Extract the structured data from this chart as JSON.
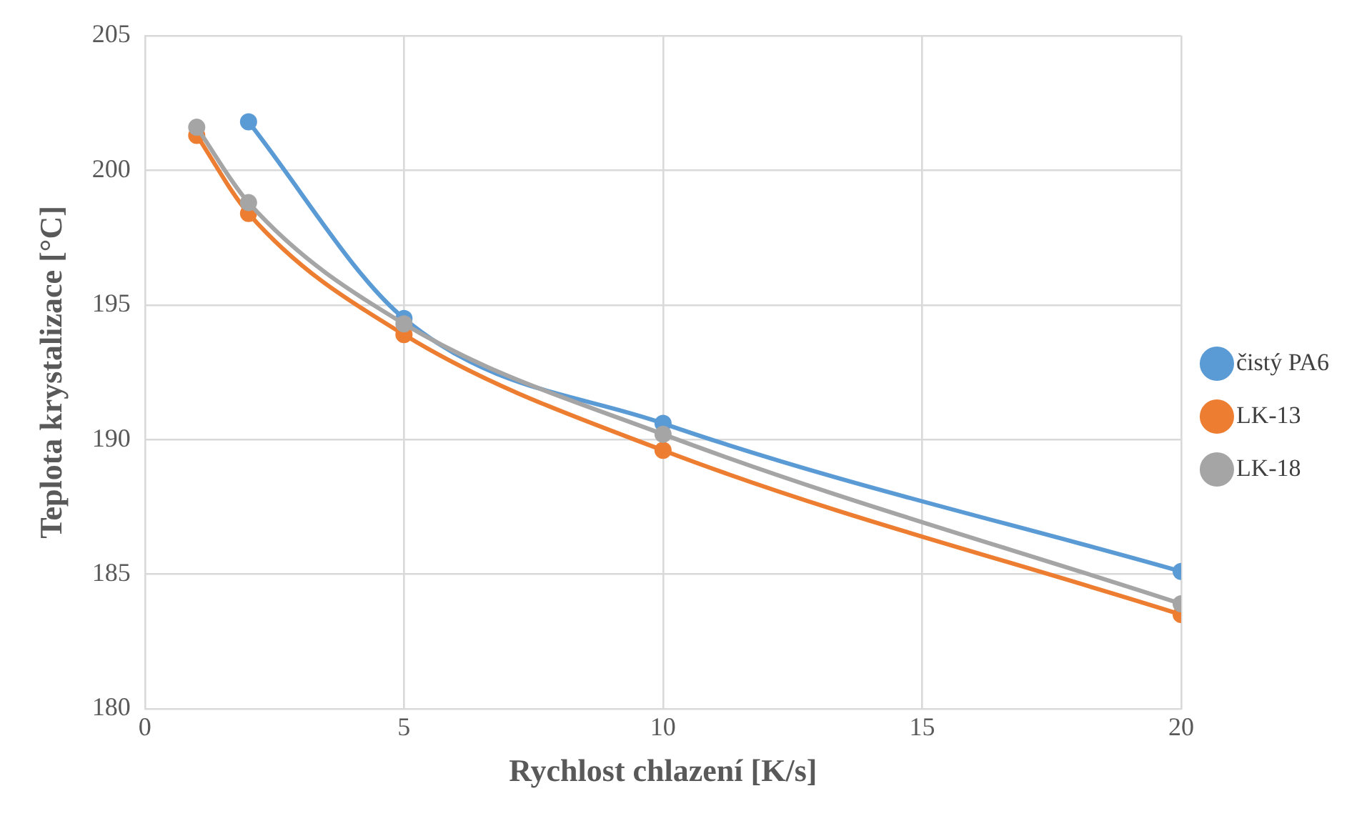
{
  "chart_data": {
    "type": "line",
    "xlabel": "Rychlost chlazení [K/s]",
    "ylabel": "Teplota krystalizace [°C]",
    "xlim": [
      0,
      20
    ],
    "xticks": [
      0,
      5,
      10,
      15,
      20
    ],
    "ylim": [
      180,
      205
    ],
    "yticks": [
      180,
      185,
      190,
      195,
      200,
      205
    ],
    "grid": true,
    "legend": "right",
    "marker": "circle",
    "line_style": "solid",
    "series": [
      {
        "name": "čistý PA6",
        "color": "#5b9bd5",
        "x": [
          2,
          5,
          10,
          20
        ],
        "values": [
          201.8,
          194.5,
          190.6,
          185.1
        ]
      },
      {
        "name": "LK-13",
        "color": "#ed7d31",
        "x": [
          1,
          2,
          5,
          10,
          20
        ],
        "values": [
          201.3,
          198.4,
          193.9,
          189.6,
          183.5
        ]
      },
      {
        "name": "LK-18",
        "color": "#a5a5a5",
        "x": [
          1,
          2,
          5,
          10,
          20
        ],
        "values": [
          201.6,
          198.8,
          194.3,
          190.2,
          183.9
        ]
      }
    ]
  }
}
